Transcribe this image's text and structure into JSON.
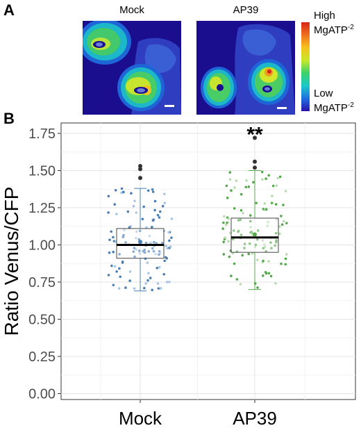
{
  "panel_a": {
    "letter": "A",
    "images": [
      {
        "title": "Mock"
      },
      {
        "title": "AP39"
      }
    ],
    "colorbar": {
      "high_word": "High",
      "low_word": "Low",
      "unit_base": "MgATP",
      "unit_sup": "-2",
      "colors": [
        "#2a10a8",
        "#1f6fe0",
        "#1bc9c9",
        "#3bd36a",
        "#c8e82a",
        "#f6c21b",
        "#f07020",
        "#d62418"
      ]
    }
  },
  "panel_b": {
    "letter": "B"
  },
  "chart_data": {
    "type": "boxplot",
    "ylabel": "Ratio Venus/CFP",
    "xlabel": "",
    "ylim": [
      -0.04,
      1.82
    ],
    "yticks": [
      "0.00",
      "0.25",
      "0.50",
      "0.75",
      "1.00",
      "1.25",
      "1.50",
      "1.75"
    ],
    "grid": true,
    "categories": [
      "Mock",
      "AP39"
    ],
    "annotation": {
      "text": "**",
      "category": "AP39",
      "y": 1.77
    },
    "series": [
      {
        "category": "Mock",
        "color": "#4a7fb5",
        "light_color": "#a9c7e3",
        "box": {
          "q1": 0.91,
          "median": 1.0,
          "q3": 1.11,
          "whisker_low": 0.69,
          "whisker_high": 1.38,
          "mean": 1.02
        },
        "outliers": [
          1.53,
          1.51,
          1.45
        ]
      },
      {
        "category": "AP39",
        "color": "#55a84b",
        "light_color": "#b7dcae",
        "box": {
          "q1": 0.95,
          "median": 1.05,
          "q3": 1.18,
          "whisker_low": 0.7,
          "whisker_high": 1.5,
          "mean": 1.07
        },
        "outliers": [
          1.72,
          1.56,
          1.52
        ]
      }
    ]
  }
}
